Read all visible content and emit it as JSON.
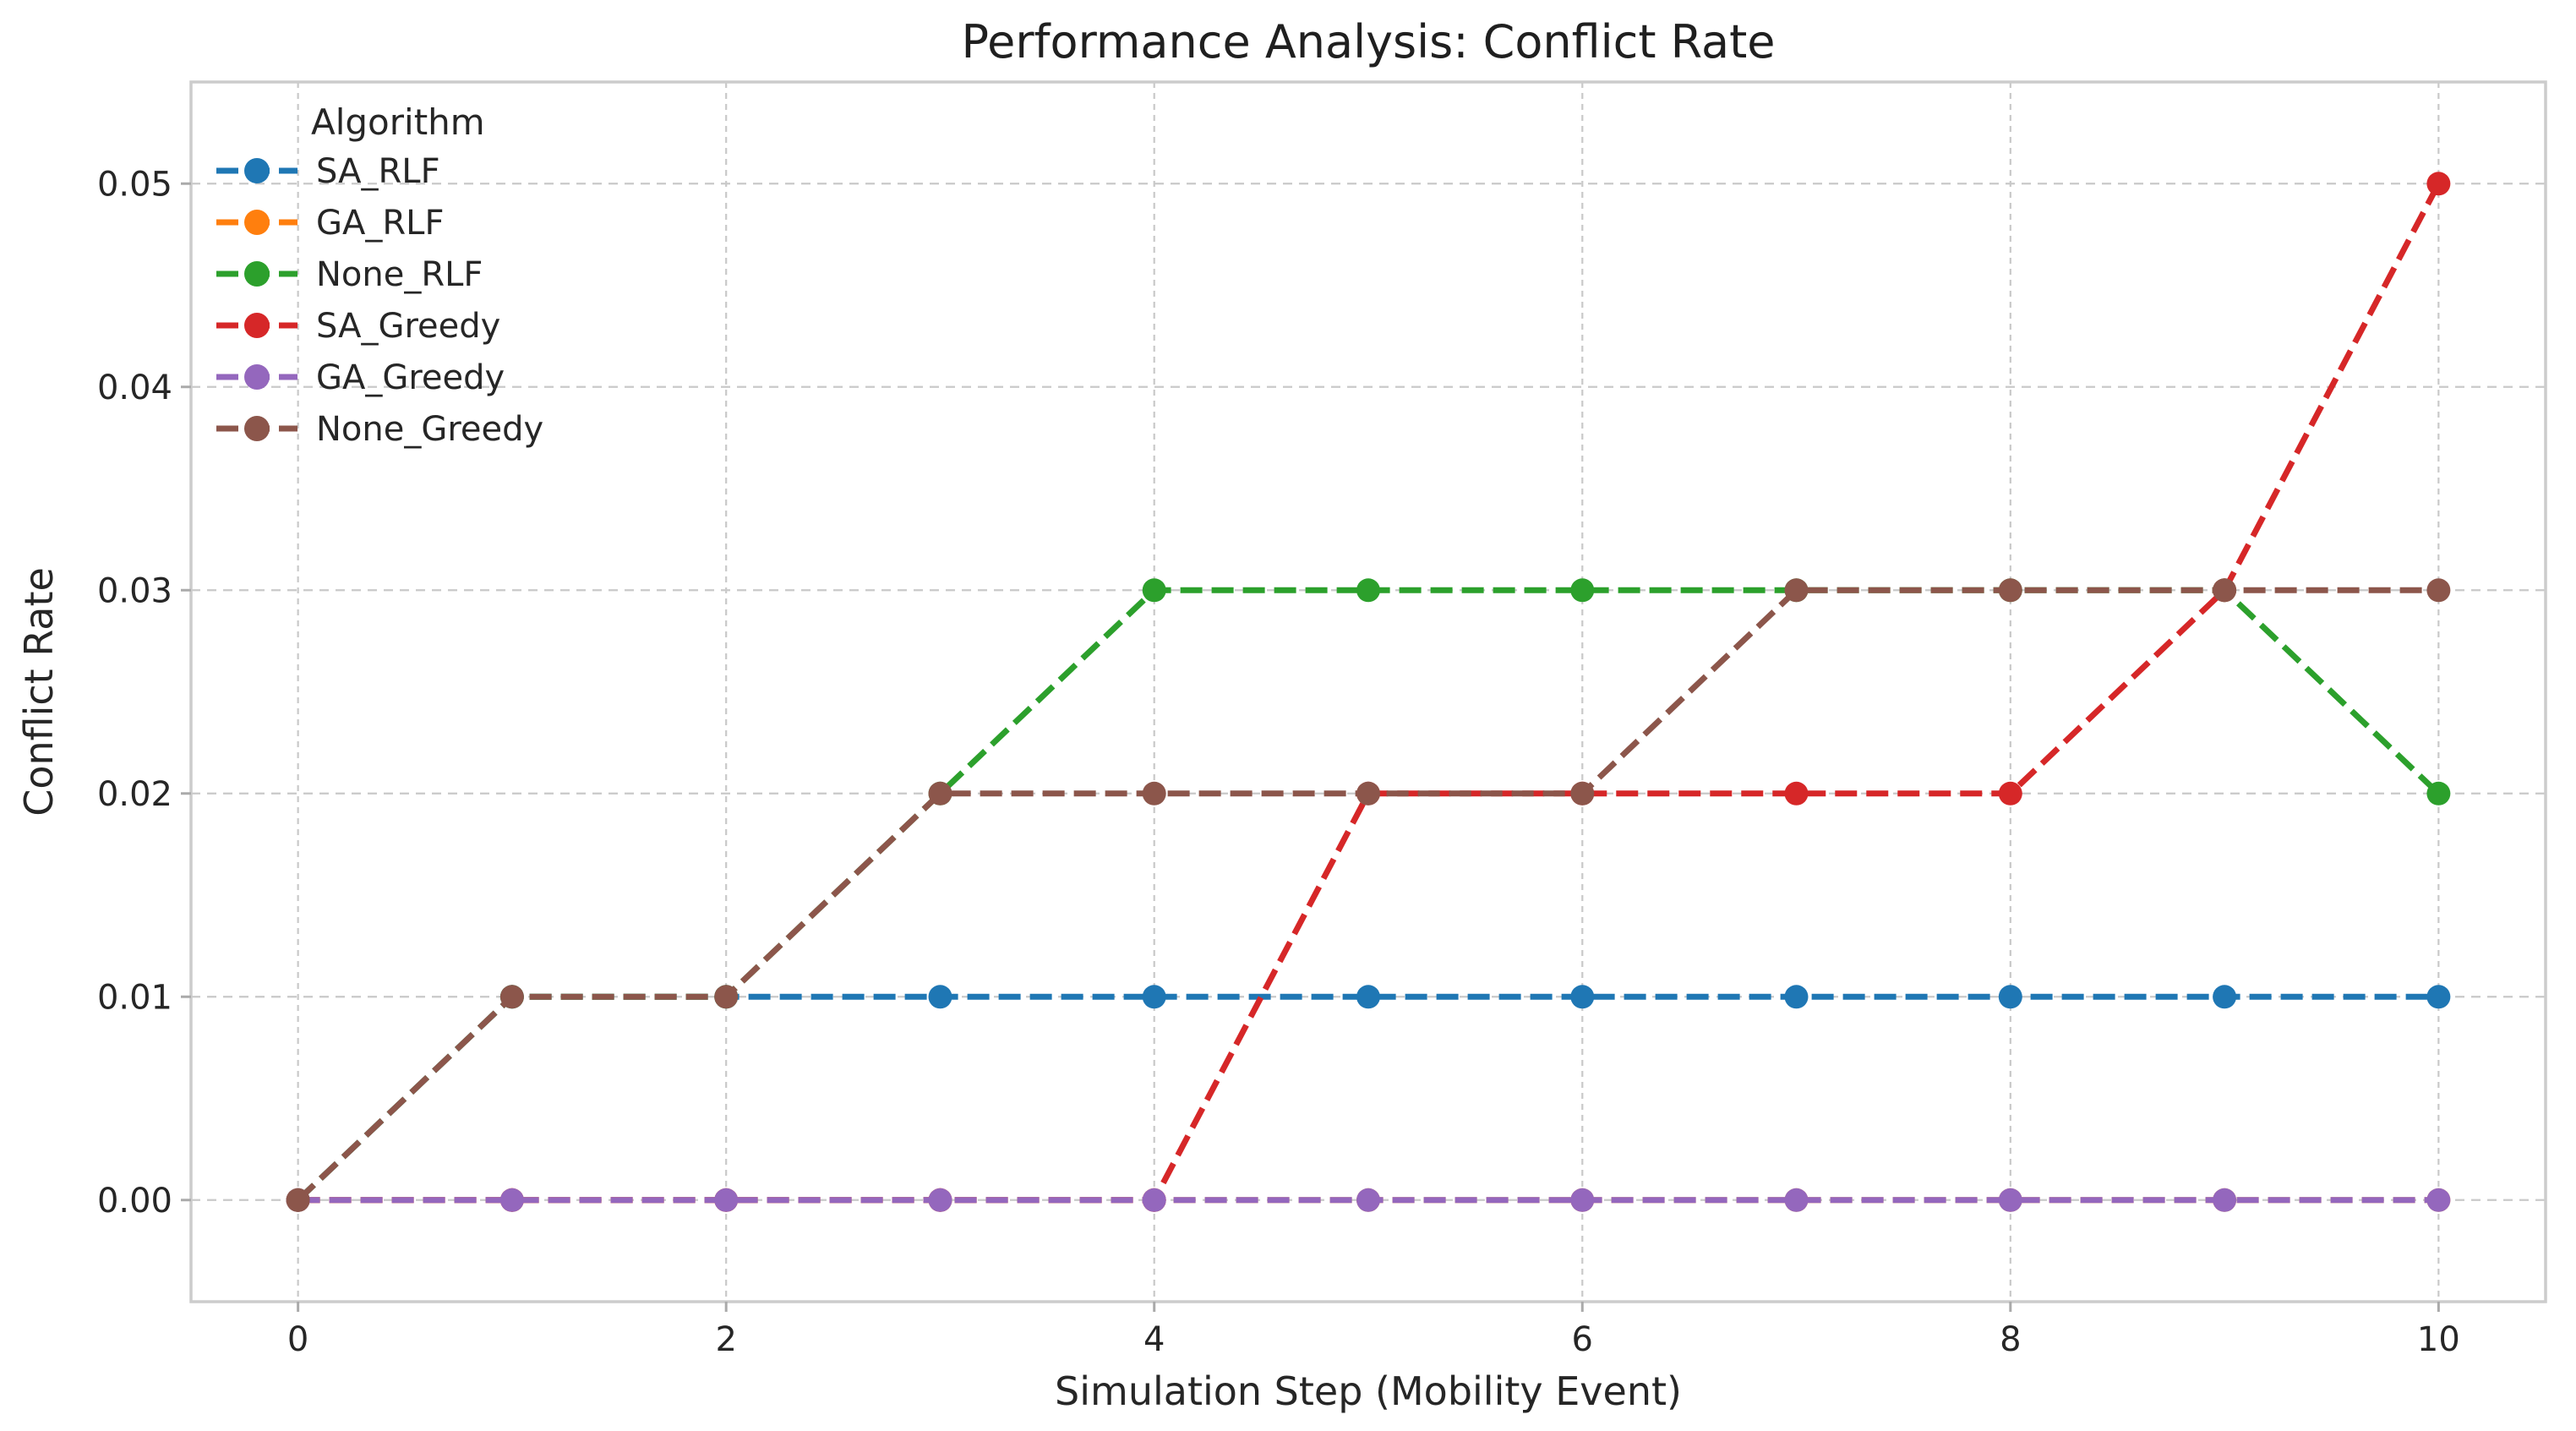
{
  "chart_data": {
    "type": "line",
    "title": "Performance Analysis: Conflict Rate",
    "xlabel": "Simulation Step (Mobility Event)",
    "ylabel": "Conflict Rate",
    "x": [
      0,
      1,
      2,
      3,
      4,
      5,
      6,
      7,
      8,
      9,
      10
    ],
    "series": [
      {
        "name": "SA_RLF",
        "color": "#1f77b4",
        "values": [
          0.0,
          0.01,
          0.01,
          0.01,
          0.01,
          0.01,
          0.01,
          0.01,
          0.01,
          0.01,
          0.01
        ]
      },
      {
        "name": "GA_RLF",
        "color": "#ff7f0e",
        "values": [
          0.0,
          0.0,
          0.0,
          0.0,
          0.0,
          0.0,
          0.0,
          0.0,
          0.0,
          0.0,
          0.0
        ]
      },
      {
        "name": "None_RLF",
        "color": "#2ca02c",
        "values": [
          0.0,
          0.01,
          0.01,
          0.02,
          0.03,
          0.03,
          0.03,
          0.03,
          0.03,
          0.03,
          0.02
        ]
      },
      {
        "name": "SA_Greedy",
        "color": "#d62728",
        "values": [
          0.0,
          0.0,
          0.0,
          0.0,
          0.0,
          0.02,
          0.02,
          0.02,
          0.02,
          0.03,
          0.05
        ]
      },
      {
        "name": "GA_Greedy",
        "color": "#9467bd",
        "values": [
          0.0,
          0.0,
          0.0,
          0.0,
          0.0,
          0.0,
          0.0,
          0.0,
          0.0,
          0.0,
          0.0
        ]
      },
      {
        "name": "None_Greedy",
        "color": "#8c564b",
        "values": [
          0.0,
          0.01,
          0.01,
          0.02,
          0.02,
          0.02,
          0.02,
          0.03,
          0.03,
          0.03,
          0.03
        ]
      }
    ],
    "legend": {
      "title": "Algorithm",
      "position": "upper-left"
    },
    "xticks": {
      "values": [
        0,
        2,
        4,
        6,
        8,
        10
      ],
      "labels": [
        "0",
        "2",
        "4",
        "6",
        "8",
        "10"
      ]
    },
    "yticks": {
      "values": [
        0.0,
        0.01,
        0.02,
        0.03,
        0.04,
        0.05
      ],
      "labels": [
        "0.00",
        "0.01",
        "0.02",
        "0.03",
        "0.04",
        "0.05"
      ]
    },
    "xlim": [
      -0.5,
      10.5
    ],
    "ylim": [
      -0.005,
      0.055
    ],
    "grid": true,
    "line_style": "dashed",
    "marker": "circle",
    "colors": {
      "grid": "#c9c9c9",
      "spine": "#cccccc",
      "tick": "#aaaaaa",
      "text": "#262626"
    }
  }
}
